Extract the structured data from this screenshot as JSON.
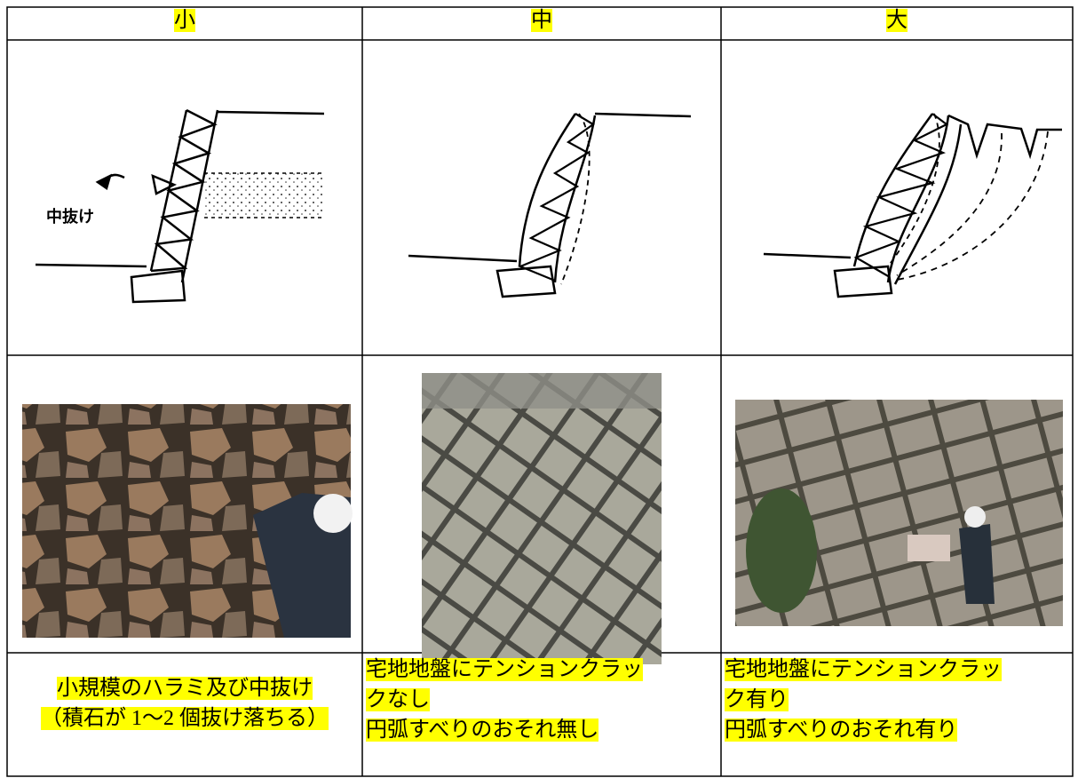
{
  "table": {
    "header": [
      "小",
      "中",
      "大"
    ],
    "diagram_label": "中抜け",
    "descriptions": [
      [
        "小規模のハラミ及び中抜け",
        "（積石が 1～2 個抜け落ちる）"
      ],
      [
        "宅地地盤にテンションクラッ",
        "クなし",
        "円弧すべりのおそれ無し"
      ],
      [
        "宅地地盤にテンションクラッ",
        "ク有り",
        "円弧すべりのおそれ有り"
      ]
    ]
  }
}
